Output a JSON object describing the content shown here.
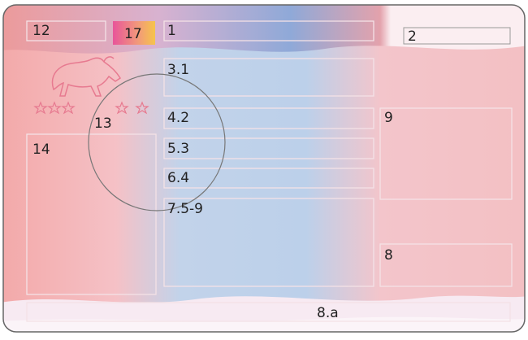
{
  "fields": [
    {
      "label": "12"
    },
    {
      "label": "17"
    },
    {
      "label": "1"
    },
    {
      "label": "2"
    },
    {
      "label": "3.1"
    },
    {
      "label": "4.2"
    },
    {
      "label": "5.3"
    },
    {
      "label": "6.4"
    },
    {
      "label": "7.5-9"
    },
    {
      "label": "13"
    },
    {
      "label": "14"
    },
    {
      "label": "9"
    },
    {
      "label": "8"
    },
    {
      "label": "8.a"
    }
  ]
}
